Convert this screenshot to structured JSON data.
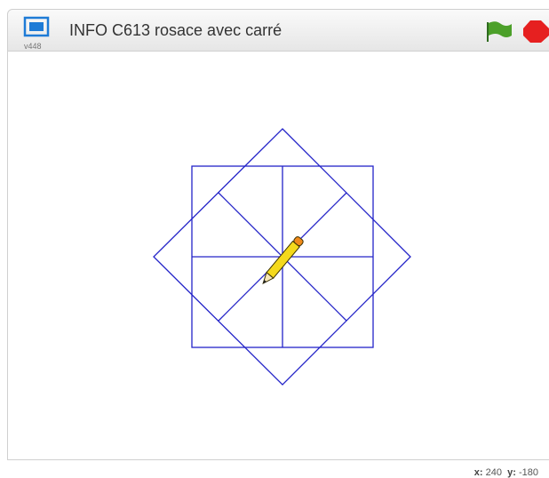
{
  "header": {
    "version": "v448",
    "title": "INFO C613 rosace avec carré"
  },
  "footer": {
    "x_label": "x:",
    "x": 240,
    "y_label": "y:",
    "y": -180
  }
}
